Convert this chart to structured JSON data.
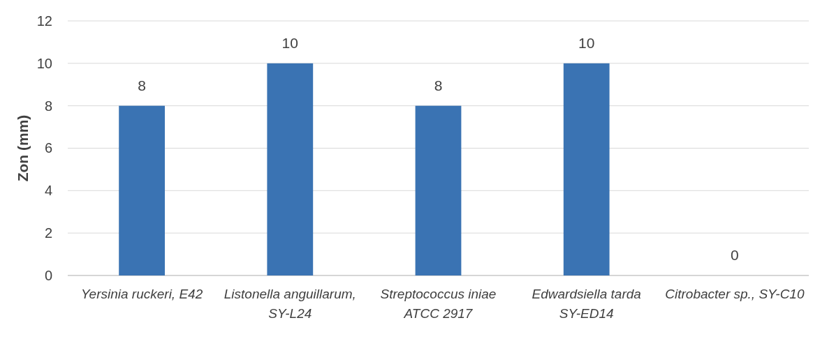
{
  "chart_data": {
    "type": "bar",
    "ylabel": "Zon (mm)",
    "categories": [
      "Yersinia ruckeri, E42",
      "Listonella anguillarum, SY-L24",
      "Streptococcus iniae ATCC 2917",
      "Edwardsiella tarda SY-ED14",
      "Citrobacter sp., SY-C10"
    ],
    "values": [
      8,
      10,
      8,
      10,
      0
    ],
    "color": "#3a73b3",
    "ylim": [
      0,
      12
    ],
    "yticks": [
      0,
      2,
      4,
      6,
      8,
      10,
      12
    ],
    "grid": "y",
    "data_labels": true
  }
}
